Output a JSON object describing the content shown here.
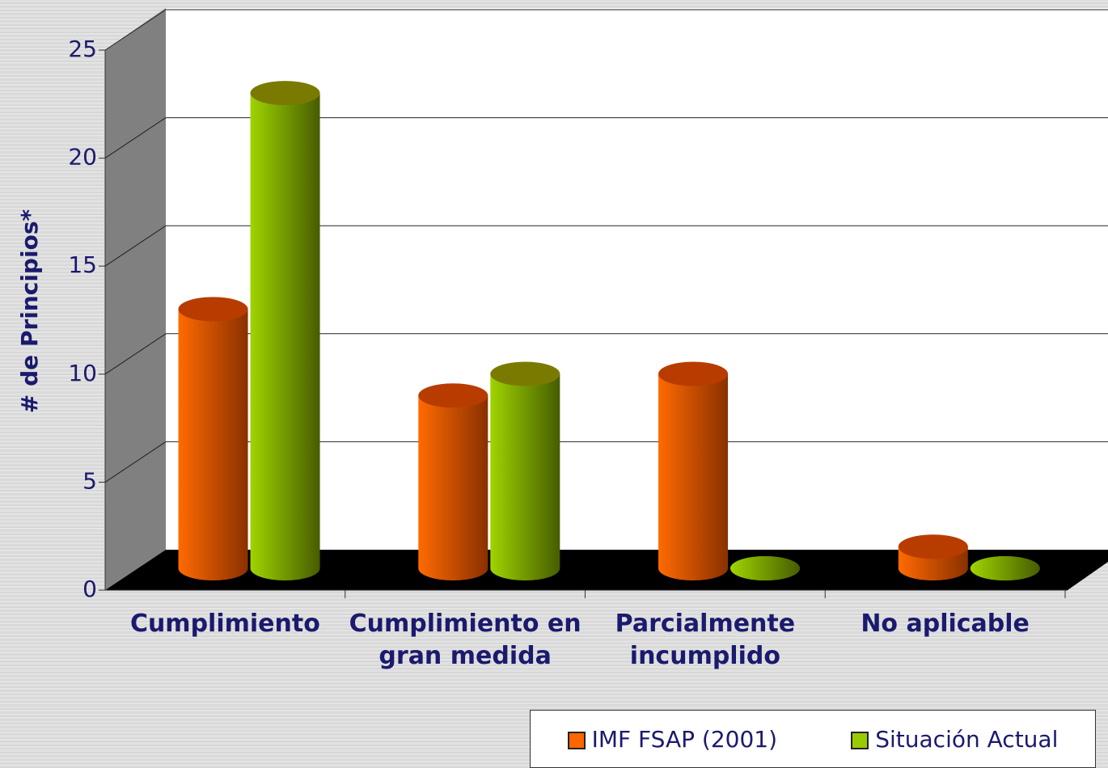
{
  "chart_data": {
    "type": "bar3d",
    "y_label": "# de Principios*",
    "categories": [
      "Cumplimiento",
      "Cumplimiento en gran medida",
      "Parcialmente incumplido",
      "No aplicable"
    ],
    "series": [
      {
        "name": "IMF FSAP (2001)",
        "color": "#ff6600",
        "values": [
          12,
          8,
          9,
          1
        ]
      },
      {
        "name": "Situación Actual",
        "color": "#99cc00",
        "values": [
          22,
          9,
          0,
          0
        ]
      }
    ],
    "ylim": [
      0,
      25
    ],
    "yticks": [
      0,
      5,
      10,
      15,
      20,
      25
    ],
    "grid": true
  }
}
